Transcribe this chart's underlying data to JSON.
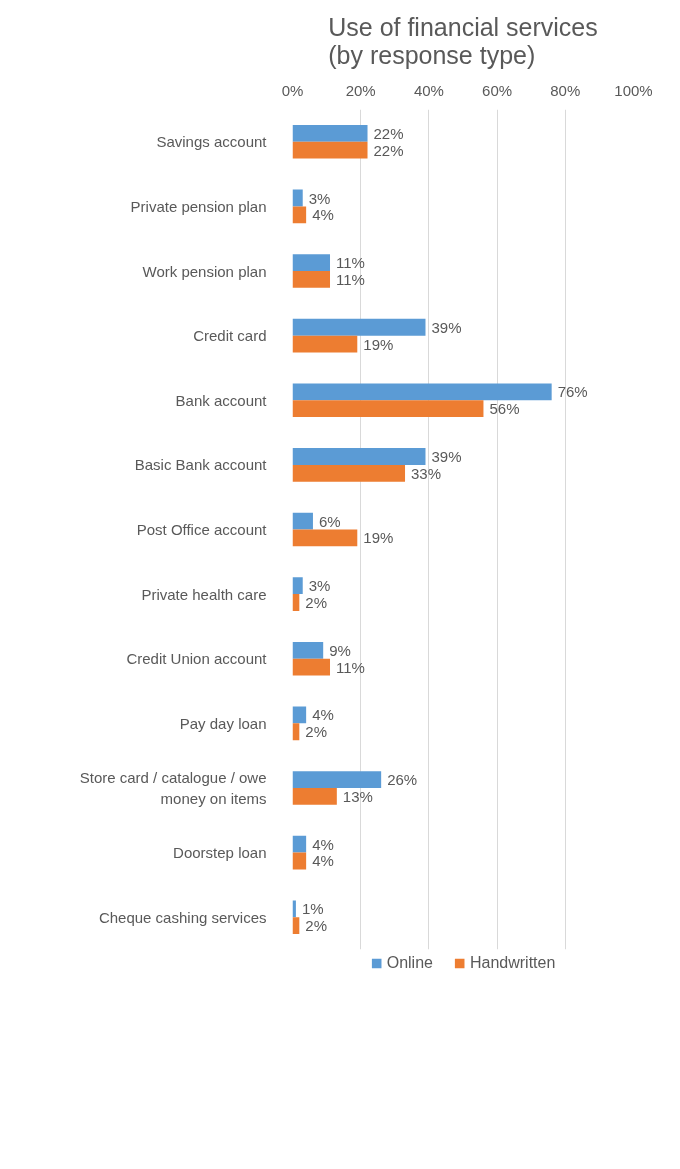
{
  "chart_data": {
    "type": "bar",
    "orientation": "horizontal",
    "title": "Use of financial services\n(by response type)",
    "categories": [
      "Savings account",
      "Private pension plan",
      "Work pension plan",
      "Credit card",
      "Bank account",
      "Basic Bank account",
      "Post Office account",
      "Private health care",
      "Credit Union account",
      "Pay day loan",
      "Store card / catalogue / owe money on items",
      "Doorstep loan",
      "Cheque cashing services"
    ],
    "series": [
      {
        "name": "Online",
        "color": "#5b9bd5",
        "values": [
          22,
          3,
          11,
          39,
          76,
          39,
          6,
          3,
          9,
          4,
          26,
          4,
          1
        ],
        "value_labels": [
          "22%",
          "3%",
          "11%",
          "39%",
          "76%",
          "39%",
          "6%",
          "3%",
          "9%",
          "4%",
          "26%",
          "4%",
          "1%"
        ]
      },
      {
        "name": "Handwritten",
        "color": "#ed7d31",
        "values": [
          22,
          4,
          11,
          19,
          56,
          33,
          19,
          2,
          11,
          2,
          13,
          4,
          2
        ],
        "value_labels": [
          "22%",
          "4%",
          "11%",
          "19%",
          "56%",
          "33%",
          "19%",
          "2%",
          "11%",
          "2%",
          "13%",
          "4%",
          "2%"
        ]
      }
    ],
    "xlim": [
      0,
      100
    ],
    "xticks": [
      {
        "value": 0,
        "label": "0%"
      },
      {
        "value": 20,
        "label": "20%"
      },
      {
        "value": 40,
        "label": "40%"
      },
      {
        "value": 60,
        "label": "60%"
      },
      {
        "value": 80,
        "label": "80%"
      },
      {
        "value": 100,
        "label": "100%"
      }
    ],
    "grid": "x",
    "legend": "bottom"
  }
}
